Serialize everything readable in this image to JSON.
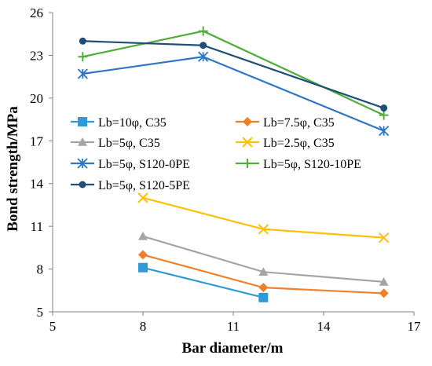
{
  "chart_data": {
    "type": "line",
    "xlabel": "Bar diameter/m",
    "ylabel": "Bond strength/MPa",
    "xlim": [
      5,
      17
    ],
    "ylim": [
      5,
      26
    ],
    "xticks": [
      "5",
      "8",
      "11",
      "14",
      "17"
    ],
    "yticks": [
      "5",
      "8",
      "11",
      "14",
      "17",
      "20",
      "23",
      "26"
    ],
    "grid": false,
    "legend_position": "left",
    "series": [
      {
        "name": "Lb=10φ, C35",
        "color": "#2E9BD6",
        "marker": "square",
        "x": [
          8,
          12
        ],
        "y": [
          8.1,
          6.0
        ]
      },
      {
        "name": "Lb=7.5φ, C35",
        "color": "#F07F2A",
        "marker": "diamond",
        "x": [
          8,
          12,
          16
        ],
        "y": [
          9.0,
          6.7,
          6.3
        ]
      },
      {
        "name": "Lb=5φ, C35",
        "color": "#A5A5A5",
        "marker": "triangle",
        "x": [
          8,
          12,
          16
        ],
        "y": [
          10.3,
          7.8,
          7.1
        ]
      },
      {
        "name": "Lb=2.5φ, C35",
        "color": "#FFC000",
        "marker": "x",
        "x": [
          8,
          12,
          16
        ],
        "y": [
          13.0,
          10.8,
          10.2
        ]
      },
      {
        "name": "Lb=5φ, S120-0PE",
        "color": "#2E75C6",
        "marker": "asterisk",
        "x": [
          6,
          10,
          16
        ],
        "y": [
          21.7,
          22.9,
          17.7
        ]
      },
      {
        "name": "Lb=5φ, S120-10PE",
        "color": "#4FAE3A",
        "marker": "plus",
        "x": [
          6,
          10,
          16
        ],
        "y": [
          22.9,
          24.7,
          18.8
        ]
      },
      {
        "name": "Lb=5φ, S120-5PE",
        "color": "#1F4E79",
        "marker": "circle",
        "x": [
          6,
          10,
          16
        ],
        "y": [
          24.0,
          23.7,
          19.3
        ]
      }
    ]
  }
}
